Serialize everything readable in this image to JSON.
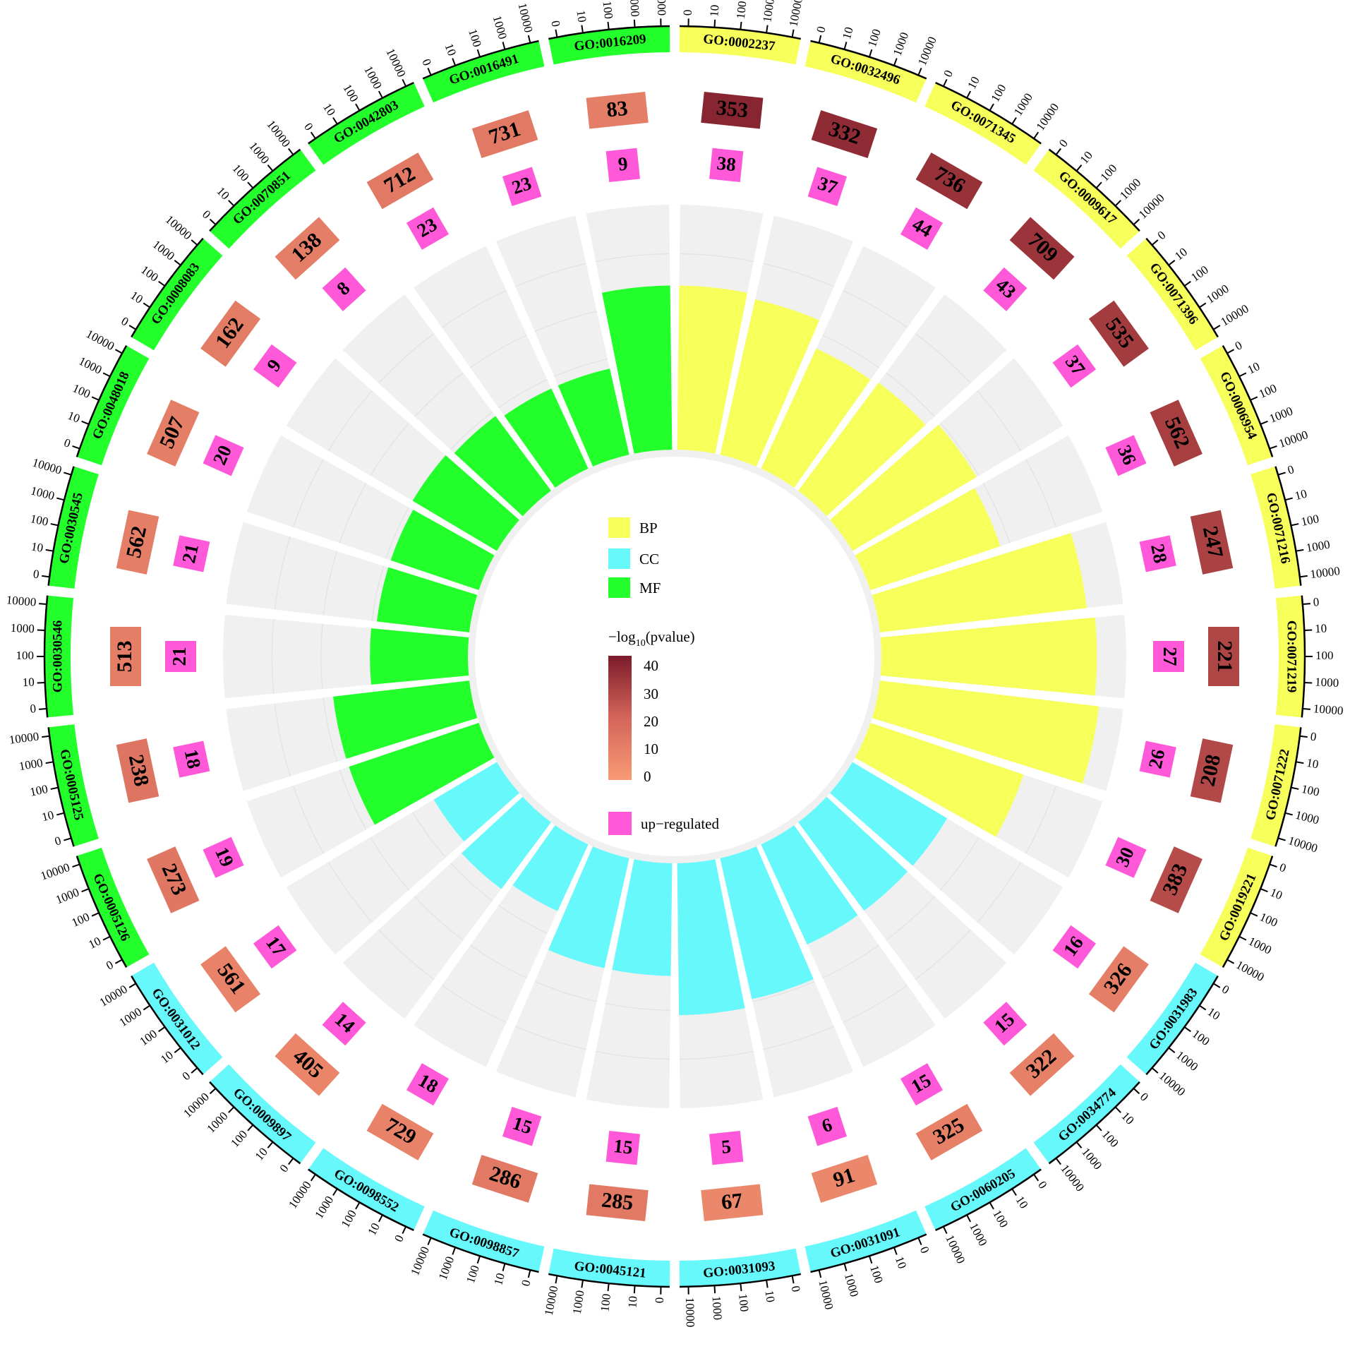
{
  "chart_data": {
    "type": "circular-go-enrichment",
    "category_colors": {
      "BP": "#f7ff5a",
      "CC": "#66f8fb",
      "MF": "#22ff2a"
    },
    "upregulated_color": "#ff59d9",
    "background_track_color": "#f0f0f0",
    "pvalue_gradient": [
      "#f89b75",
      "#d4655a",
      "#7b1b2a"
    ],
    "outer_axis_ticks": [
      "0",
      "10",
      "100",
      "1000",
      "10000"
    ],
    "terms": [
      {
        "id": "GO:0002237",
        "category": "BP",
        "count": "353",
        "up": "38",
        "rich_factor": 0.67,
        "log10p": 42
      },
      {
        "id": "GO:0032496",
        "category": "BP",
        "count": "332",
        "up": "37",
        "rich_factor": 0.65,
        "log10p": 40
      },
      {
        "id": "GO:0071345",
        "category": "BP",
        "count": "736",
        "up": "44",
        "rich_factor": 0.54,
        "log10p": 38
      },
      {
        "id": "GO:0009617",
        "category": "BP",
        "count": "709",
        "up": "43",
        "rich_factor": 0.55,
        "log10p": 37
      },
      {
        "id": "GO:0071396",
        "category": "BP",
        "count": "535",
        "up": "37",
        "rich_factor": 0.59,
        "log10p": 35
      },
      {
        "id": "GO:0006954",
        "category": "BP",
        "count": "562",
        "up": "36",
        "rich_factor": 0.56,
        "log10p": 34
      },
      {
        "id": "GO:0071216",
        "category": "BP",
        "count": "247",
        "up": "28",
        "rich_factor": 0.85,
        "log10p": 33
      },
      {
        "id": "GO:0071219",
        "category": "BP",
        "count": "221",
        "up": "27",
        "rich_factor": 0.88,
        "log10p": 32
      },
      {
        "id": "GO:0071222",
        "category": "BP",
        "count": "208",
        "up": "26",
        "rich_factor": 0.9,
        "log10p": 31
      },
      {
        "id": "GO:0019221",
        "category": "BP",
        "count": "383",
        "up": "30",
        "rich_factor": 0.66,
        "log10p": 30
      },
      {
        "id": "GO:0031983",
        "category": "CC",
        "count": "326",
        "up": "16",
        "rich_factor": 0.45,
        "log10p": 12
      },
      {
        "id": "GO:0034774",
        "category": "CC",
        "count": "322",
        "up": "15",
        "rich_factor": 0.45,
        "log10p": 11
      },
      {
        "id": "GO:0060205",
        "category": "CC",
        "count": "325",
        "up": "15",
        "rich_factor": 0.45,
        "log10p": 11
      },
      {
        "id": "GO:0031091",
        "category": "CC",
        "count": "91",
        "up": "6",
        "rich_factor": 0.59,
        "log10p": 8
      },
      {
        "id": "GO:0031093",
        "category": "CC",
        "count": "67",
        "up": "5",
        "rich_factor": 0.62,
        "log10p": 8
      },
      {
        "id": "GO:0045121",
        "category": "CC",
        "count": "285",
        "up": "15",
        "rich_factor": 0.46,
        "log10p": 14
      },
      {
        "id": "GO:0098857",
        "category": "CC",
        "count": "286",
        "up": "15",
        "rich_factor": 0.46,
        "log10p": 14
      },
      {
        "id": "GO:0098552",
        "category": "CC",
        "count": "729",
        "up": "18",
        "rich_factor": 0.3,
        "log10p": 10
      },
      {
        "id": "GO:0009897",
        "category": "CC",
        "count": "405",
        "up": "14",
        "rich_factor": 0.34,
        "log10p": 9
      },
      {
        "id": "GO:0031012",
        "category": "CC",
        "count": "561",
        "up": "17",
        "rich_factor": 0.3,
        "log10p": 10
      },
      {
        "id": "GO:0005126",
        "category": "MF",
        "count": "273",
        "up": "19",
        "rich_factor": 0.56,
        "log10p": 15
      },
      {
        "id": "GO:0005125",
        "category": "MF",
        "count": "238",
        "up": "18",
        "rich_factor": 0.56,
        "log10p": 16
      },
      {
        "id": "GO:0030546",
        "category": "MF",
        "count": "513",
        "up": "21",
        "rich_factor": 0.4,
        "log10p": 12
      },
      {
        "id": "GO:0030545",
        "category": "MF",
        "count": "562",
        "up": "21",
        "rich_factor": 0.38,
        "log10p": 12
      },
      {
        "id": "GO:0048018",
        "category": "MF",
        "count": "507",
        "up": "20",
        "rich_factor": 0.38,
        "log10p": 12
      },
      {
        "id": "GO:0008083",
        "category": "MF",
        "count": "162",
        "up": "9",
        "rich_factor": 0.4,
        "log10p": 13
      },
      {
        "id": "GO:0070851",
        "category": "MF",
        "count": "138",
        "up": "8",
        "rich_factor": 0.38,
        "log10p": 12
      },
      {
        "id": "GO:0042803",
        "category": "MF",
        "count": "712",
        "up": "23",
        "rich_factor": 0.36,
        "log10p": 14
      },
      {
        "id": "GO:0016491",
        "category": "MF",
        "count": "731",
        "up": "23",
        "rich_factor": 0.36,
        "log10p": 14
      },
      {
        "id": "GO:0016209",
        "category": "MF",
        "count": "83",
        "up": "9",
        "rich_factor": 0.67,
        "log10p": 12
      }
    ],
    "legend": {
      "categories": [
        {
          "key": "BP",
          "label": "BP"
        },
        {
          "key": "CC",
          "label": "CC"
        },
        {
          "key": "MF",
          "label": "MF"
        }
      ],
      "pvalue_title": "−log10(pvalue)",
      "pvalue_ticks": [
        "40",
        "30",
        "20",
        "10",
        "0"
      ],
      "up_label": "up−regulated"
    }
  }
}
